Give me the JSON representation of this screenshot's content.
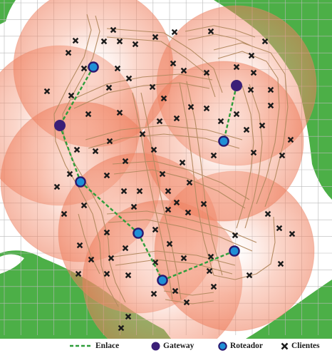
{
  "legend": {
    "link_label": "Enlace",
    "gateway_label": "Gateway",
    "router_label": "Roteador",
    "client_label": "Clientes"
  },
  "colors": {
    "link": "#2e9e3a",
    "gateway": "#3b1f77",
    "router_fill": "#1f8fd6",
    "router_ring": "#2a176e",
    "client": "#1c1c1c",
    "coverage": "#f08a6a",
    "terrain": "#4caf47",
    "grid": "#b9b9b9",
    "roads": "#b58b62"
  },
  "icons": {
    "link": "dashed-line-icon",
    "gateway": "filled-circle-icon",
    "router": "ringed-circle-icon",
    "client": "x-mark-icon"
  }
}
